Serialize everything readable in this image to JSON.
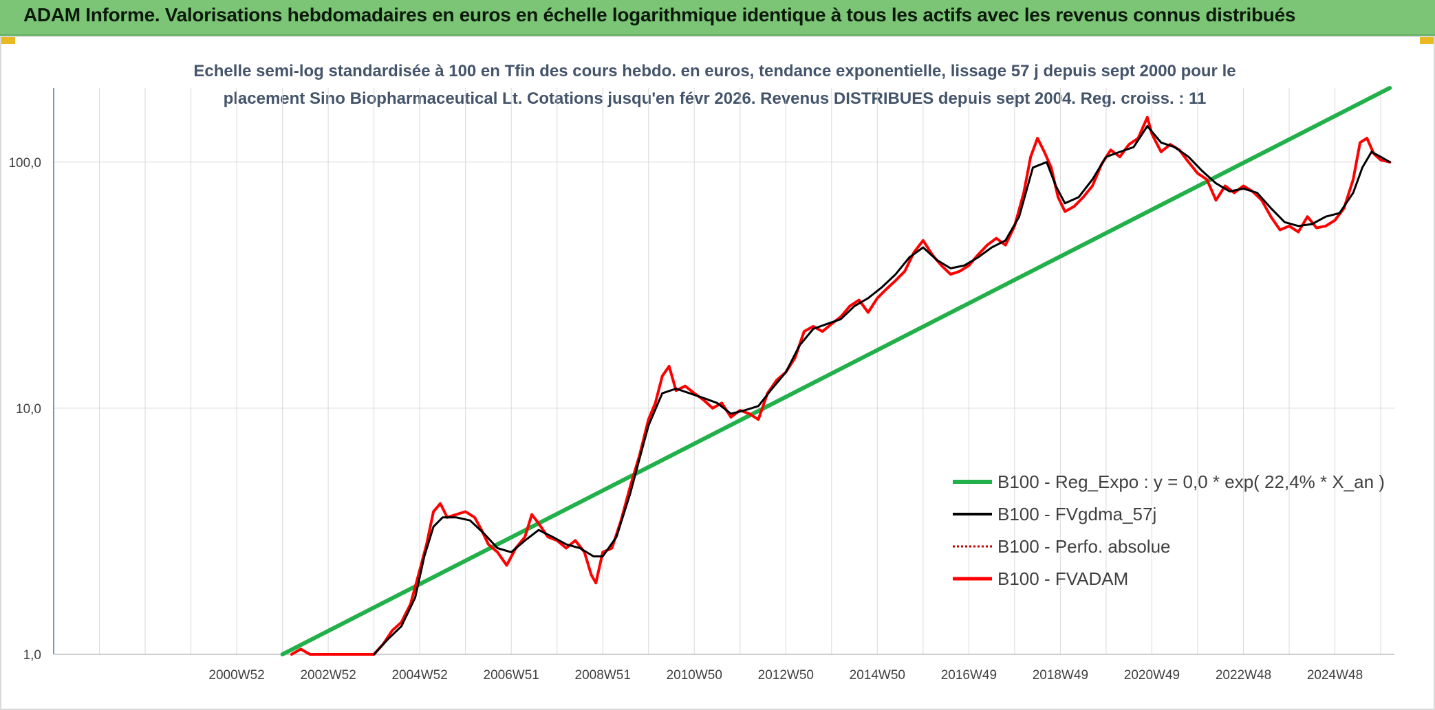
{
  "header": {
    "title": "ADAM Informe. Valorisations hebdomadaires en euros en échelle logarithmique identique à tous les actifs avec les revenus connus distribués"
  },
  "colors": {
    "header_bg": "#7cc576",
    "regression": "#22b04a",
    "smoothed": "#000000",
    "absolute": "#c00000",
    "fvadam": "#ff0000",
    "grid": "#d9d9d9",
    "axis": "#4472c4"
  },
  "chart_data": {
    "type": "line",
    "title_line1": "Echelle semi-log standardisée à 100 en Tfin des cours hebdo. en euros, tendance exponentielle, lissage 57 j depuis sept 2000 pour le",
    "title_line2": "placement Sino Biopharmaceutical Lt. Cotations jusqu'en févr 2026. Revenus DISTRIBUES depuis sept 2004. Reg. croiss. : 11",
    "y_scale": "log",
    "ylim": [
      1,
      200
    ],
    "y_ticks": [
      {
        "value": 1,
        "label": "1,0"
      },
      {
        "value": 10,
        "label": "10,0"
      },
      {
        "value": 100,
        "label": "100,0"
      }
    ],
    "xlim": [
      1997.0,
      2026.3
    ],
    "x_ticks": [
      {
        "value": 2001.0,
        "label": "2000W52"
      },
      {
        "value": 2003.0,
        "label": "2002W52"
      },
      {
        "value": 2005.0,
        "label": "2004W52"
      },
      {
        "value": 2007.0,
        "label": "2006W51"
      },
      {
        "value": 2009.0,
        "label": "2008W51"
      },
      {
        "value": 2011.0,
        "label": "2010W50"
      },
      {
        "value": 2013.0,
        "label": "2012W50"
      },
      {
        "value": 2015.0,
        "label": "2014W50"
      },
      {
        "value": 2017.0,
        "label": "2016W49"
      },
      {
        "value": 2019.0,
        "label": "2018W49"
      },
      {
        "value": 2021.0,
        "label": "2020W49"
      },
      {
        "value": 2023.0,
        "label": "2022W48"
      },
      {
        "value": 2025.0,
        "label": "2024W48"
      }
    ],
    "grid": true,
    "legend_position": "bottom-right",
    "series": [
      {
        "name": "B100 - Reg_Expo : y = 0,0 * exp( 22,4% *  X_an )",
        "style": "regression",
        "points": [
          [
            2002.0,
            1.0
          ],
          [
            2026.2,
            200
          ]
        ]
      },
      {
        "name": "B100 - FVgdma_57j",
        "style": "smoothed",
        "points": [
          [
            2004.0,
            1.0
          ],
          [
            2004.3,
            1.15
          ],
          [
            2004.6,
            1.3
          ],
          [
            2004.9,
            1.7
          ],
          [
            2005.1,
            2.5
          ],
          [
            2005.3,
            3.3
          ],
          [
            2005.5,
            3.6
          ],
          [
            2005.8,
            3.6
          ],
          [
            2006.1,
            3.5
          ],
          [
            2006.4,
            3.1
          ],
          [
            2006.7,
            2.7
          ],
          [
            2007.0,
            2.6
          ],
          [
            2007.3,
            2.9
          ],
          [
            2007.6,
            3.2
          ],
          [
            2007.9,
            3.0
          ],
          [
            2008.2,
            2.8
          ],
          [
            2008.5,
            2.7
          ],
          [
            2008.8,
            2.5
          ],
          [
            2009.0,
            2.5
          ],
          [
            2009.3,
            3.0
          ],
          [
            2009.6,
            4.5
          ],
          [
            2009.8,
            6.2
          ],
          [
            2010.0,
            8.5
          ],
          [
            2010.3,
            11.5
          ],
          [
            2010.6,
            12.0
          ],
          [
            2010.9,
            11.5
          ],
          [
            2011.2,
            11.0
          ],
          [
            2011.5,
            10.5
          ],
          [
            2011.8,
            9.5
          ],
          [
            2012.1,
            9.8
          ],
          [
            2012.4,
            10.2
          ],
          [
            2012.7,
            12.0
          ],
          [
            2013.0,
            14.0
          ],
          [
            2013.3,
            18.0
          ],
          [
            2013.6,
            21.0
          ],
          [
            2013.9,
            22.0
          ],
          [
            2014.2,
            23.0
          ],
          [
            2014.5,
            26.0
          ],
          [
            2014.8,
            28.0
          ],
          [
            2015.1,
            31.0
          ],
          [
            2015.4,
            35.0
          ],
          [
            2015.7,
            41.0
          ],
          [
            2016.0,
            45.0
          ],
          [
            2016.3,
            40.0
          ],
          [
            2016.6,
            37.0
          ],
          [
            2016.9,
            38.0
          ],
          [
            2017.2,
            41.0
          ],
          [
            2017.5,
            45.0
          ],
          [
            2017.8,
            48.0
          ],
          [
            2018.1,
            60.0
          ],
          [
            2018.4,
            95.0
          ],
          [
            2018.7,
            100.0
          ],
          [
            2018.9,
            80.0
          ],
          [
            2019.1,
            68.0
          ],
          [
            2019.4,
            72.0
          ],
          [
            2019.7,
            85.0
          ],
          [
            2020.0,
            105.0
          ],
          [
            2020.3,
            110.0
          ],
          [
            2020.6,
            115.0
          ],
          [
            2020.9,
            140.0
          ],
          [
            2021.2,
            120.0
          ],
          [
            2021.5,
            115.0
          ],
          [
            2021.8,
            105.0
          ],
          [
            2022.1,
            92.0
          ],
          [
            2022.4,
            82.0
          ],
          [
            2022.7,
            76.0
          ],
          [
            2023.0,
            78.0
          ],
          [
            2023.3,
            75.0
          ],
          [
            2023.6,
            65.0
          ],
          [
            2023.9,
            57.0
          ],
          [
            2024.2,
            55.0
          ],
          [
            2024.5,
            56.0
          ],
          [
            2024.8,
            60.0
          ],
          [
            2025.1,
            62.0
          ],
          [
            2025.4,
            75.0
          ],
          [
            2025.6,
            95.0
          ],
          [
            2025.8,
            110.0
          ],
          [
            2026.0,
            105.0
          ],
          [
            2026.2,
            100.0
          ]
        ]
      },
      {
        "name": "B100 - Perfo. absolue",
        "style": "absolute",
        "points": []
      },
      {
        "name": "B100 - FVADAM",
        "style": "fvadam",
        "points": [
          [
            2002.2,
            1.0
          ],
          [
            2002.4,
            1.05
          ],
          [
            2002.6,
            1.0
          ],
          [
            2003.0,
            1.0
          ],
          [
            2003.1,
            0.98
          ],
          [
            2004.0,
            1.0
          ],
          [
            2004.2,
            1.1
          ],
          [
            2004.4,
            1.25
          ],
          [
            2004.6,
            1.35
          ],
          [
            2004.8,
            1.6
          ],
          [
            2005.0,
            2.2
          ],
          [
            2005.15,
            2.8
          ],
          [
            2005.3,
            3.8
          ],
          [
            2005.45,
            4.1
          ],
          [
            2005.6,
            3.6
          ],
          [
            2005.8,
            3.7
          ],
          [
            2006.0,
            3.8
          ],
          [
            2006.2,
            3.6
          ],
          [
            2006.35,
            3.2
          ],
          [
            2006.5,
            2.8
          ],
          [
            2006.7,
            2.6
          ],
          [
            2006.9,
            2.3
          ],
          [
            2007.1,
            2.7
          ],
          [
            2007.3,
            3.0
          ],
          [
            2007.45,
            3.7
          ],
          [
            2007.6,
            3.4
          ],
          [
            2007.8,
            3.0
          ],
          [
            2008.0,
            2.9
          ],
          [
            2008.2,
            2.7
          ],
          [
            2008.4,
            2.9
          ],
          [
            2008.6,
            2.6
          ],
          [
            2008.75,
            2.1
          ],
          [
            2008.85,
            1.95
          ],
          [
            2009.0,
            2.6
          ],
          [
            2009.2,
            2.7
          ],
          [
            2009.4,
            3.5
          ],
          [
            2009.6,
            4.8
          ],
          [
            2009.8,
            6.4
          ],
          [
            2010.0,
            9.0
          ],
          [
            2010.15,
            10.5
          ],
          [
            2010.3,
            13.5
          ],
          [
            2010.45,
            14.8
          ],
          [
            2010.6,
            11.8
          ],
          [
            2010.8,
            12.3
          ],
          [
            2011.0,
            11.5
          ],
          [
            2011.2,
            10.8
          ],
          [
            2011.4,
            10.0
          ],
          [
            2011.6,
            10.5
          ],
          [
            2011.8,
            9.2
          ],
          [
            2012.0,
            9.8
          ],
          [
            2012.2,
            9.5
          ],
          [
            2012.4,
            9.0
          ],
          [
            2012.6,
            11.5
          ],
          [
            2012.8,
            13.0
          ],
          [
            2013.0,
            14.0
          ],
          [
            2013.2,
            16.0
          ],
          [
            2013.4,
            20.5
          ],
          [
            2013.6,
            21.5
          ],
          [
            2013.8,
            20.5
          ],
          [
            2014.0,
            22.0
          ],
          [
            2014.2,
            23.5
          ],
          [
            2014.4,
            26.0
          ],
          [
            2014.6,
            27.5
          ],
          [
            2014.8,
            24.5
          ],
          [
            2015.0,
            28.0
          ],
          [
            2015.2,
            30.5
          ],
          [
            2015.4,
            33.0
          ],
          [
            2015.6,
            36.0
          ],
          [
            2015.8,
            43.0
          ],
          [
            2016.0,
            48.0
          ],
          [
            2016.2,
            42.0
          ],
          [
            2016.4,
            38.0
          ],
          [
            2016.6,
            35.0
          ],
          [
            2016.8,
            36.0
          ],
          [
            2017.0,
            38.0
          ],
          [
            2017.2,
            42.0
          ],
          [
            2017.4,
            46.0
          ],
          [
            2017.6,
            49.0
          ],
          [
            2017.8,
            46.0
          ],
          [
            2018.0,
            55.0
          ],
          [
            2018.2,
            75.0
          ],
          [
            2018.35,
            105.0
          ],
          [
            2018.5,
            125.0
          ],
          [
            2018.65,
            110.0
          ],
          [
            2018.8,
            95.0
          ],
          [
            2018.95,
            72.0
          ],
          [
            2019.1,
            63.0
          ],
          [
            2019.3,
            66.0
          ],
          [
            2019.5,
            72.0
          ],
          [
            2019.7,
            80.0
          ],
          [
            2019.9,
            98.0
          ],
          [
            2020.1,
            112.0
          ],
          [
            2020.3,
            105.0
          ],
          [
            2020.5,
            118.0
          ],
          [
            2020.7,
            125.0
          ],
          [
            2020.9,
            152.0
          ],
          [
            2021.0,
            130.0
          ],
          [
            2021.2,
            110.0
          ],
          [
            2021.4,
            118.0
          ],
          [
            2021.6,
            112.0
          ],
          [
            2021.8,
            100.0
          ],
          [
            2022.0,
            90.0
          ],
          [
            2022.2,
            85.0
          ],
          [
            2022.4,
            70.0
          ],
          [
            2022.6,
            80.0
          ],
          [
            2022.8,
            75.0
          ],
          [
            2023.0,
            80.0
          ],
          [
            2023.2,
            76.0
          ],
          [
            2023.4,
            70.0
          ],
          [
            2023.6,
            60.0
          ],
          [
            2023.8,
            53.0
          ],
          [
            2024.0,
            55.0
          ],
          [
            2024.2,
            52.0
          ],
          [
            2024.4,
            60.0
          ],
          [
            2024.6,
            54.0
          ],
          [
            2024.8,
            55.0
          ],
          [
            2025.0,
            58.0
          ],
          [
            2025.2,
            65.0
          ],
          [
            2025.4,
            85.0
          ],
          [
            2025.55,
            120.0
          ],
          [
            2025.7,
            125.0
          ],
          [
            2025.85,
            108.0
          ],
          [
            2026.0,
            102.0
          ],
          [
            2026.2,
            100.0
          ]
        ]
      }
    ]
  }
}
